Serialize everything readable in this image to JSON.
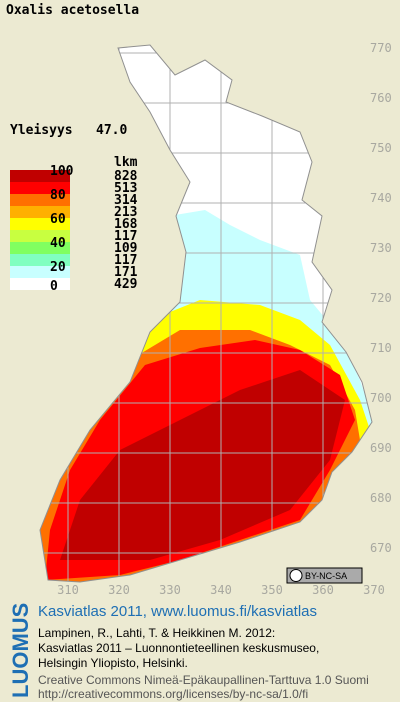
{
  "title": "Oxalis acetosella",
  "frequency": {
    "label": "Yleisyys",
    "value": "47.0"
  },
  "legend": {
    "scale_labels": [
      "100",
      "80",
      "60",
      "40",
      "20",
      "0"
    ],
    "count_header": "lkm",
    "counts": [
      828,
      513,
      314,
      213,
      168,
      117,
      109,
      117,
      171,
      429
    ],
    "colors": [
      "#c00000",
      "#ff0000",
      "#ff7000",
      "#ffb000",
      "#ffff00",
      "#c8ff40",
      "#80ff60",
      "#80ffc0",
      "#c8ffff",
      "#ffffff"
    ]
  },
  "grid": {
    "northings": [
      770,
      760,
      750,
      740,
      730,
      720,
      710,
      700,
      690,
      680,
      670
    ],
    "eastings": [
      310,
      320,
      330,
      340,
      350,
      360,
      370
    ]
  },
  "badge": "BY-NC-SA",
  "credits": {
    "logo": "LUOMUS",
    "heading": "Kasviatlas 2011, www.luomus.fi/kasviatlas",
    "citation": [
      "Lampinen, R., Lahti, T. & Heikkinen M. 2012:",
      "Kasviatlas 2011 – Luonnontieteellinen keskusmuseo,",
      "Helsingin Yliopisto, Helsinki."
    ],
    "license": [
      "Creative Commons Nimeä-Epäkaupallinen-Tarttuva 1.0 Suomi",
      "http://creativecommons.org/licenses/by-nc-sa/1.0/fi"
    ]
  }
}
